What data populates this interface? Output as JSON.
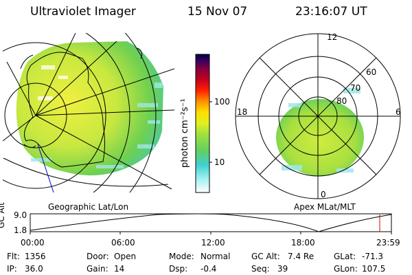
{
  "header": {
    "title": "Ultraviolet Imager",
    "date": "15 Nov 07",
    "time": "23:16:07 UT"
  },
  "left_panel": {
    "label": "Geographic Lat/Lon"
  },
  "right_panel": {
    "label": "Apex  MLat/MLT",
    "mlt_labels": [
      "12",
      "18",
      "6",
      "0"
    ],
    "mlat_labels": [
      "60",
      "70",
      "80"
    ]
  },
  "colorbar": {
    "unit_label": "photon cm⁻²s⁻¹",
    "ticks": [
      "100",
      "10"
    ],
    "scale": "log",
    "colors": [
      "#ffffff",
      "#a0f0f0",
      "#40d0d0",
      "#60d060",
      "#a0e040",
      "#e0f020",
      "#ffe000",
      "#ff9000",
      "#ff2000",
      "#c00020",
      "#800040",
      "#300060",
      "#000040"
    ]
  },
  "altitude_plot": {
    "ylabel": "GC Alt",
    "ytick_top": "9.0",
    "ytick_bottom": "1.8",
    "xticks": [
      "00:00",
      "06:00",
      "12:00",
      "18:00",
      "23:59"
    ],
    "current_marker_color": "#cc0000"
  },
  "info": {
    "row1": [
      {
        "label": "Flt:",
        "value": "1356"
      },
      {
        "label": "Door:",
        "value": "Open"
      },
      {
        "label": "Mode:",
        "value": "Normal"
      },
      {
        "label": "GC Alt:",
        "value": "7.4 Re"
      },
      {
        "label": "GLat:",
        "value": "-71.3"
      }
    ],
    "row2": [
      {
        "label": "IP:",
        "value": "36.0"
      },
      {
        "label": "Gain:",
        "value": "14"
      },
      {
        "label": "Dsp:",
        "value": "-0.4"
      },
      {
        "label": "Seq:",
        "value": "39"
      },
      {
        "label": "GLon:",
        "value": "107.5"
      }
    ]
  }
}
